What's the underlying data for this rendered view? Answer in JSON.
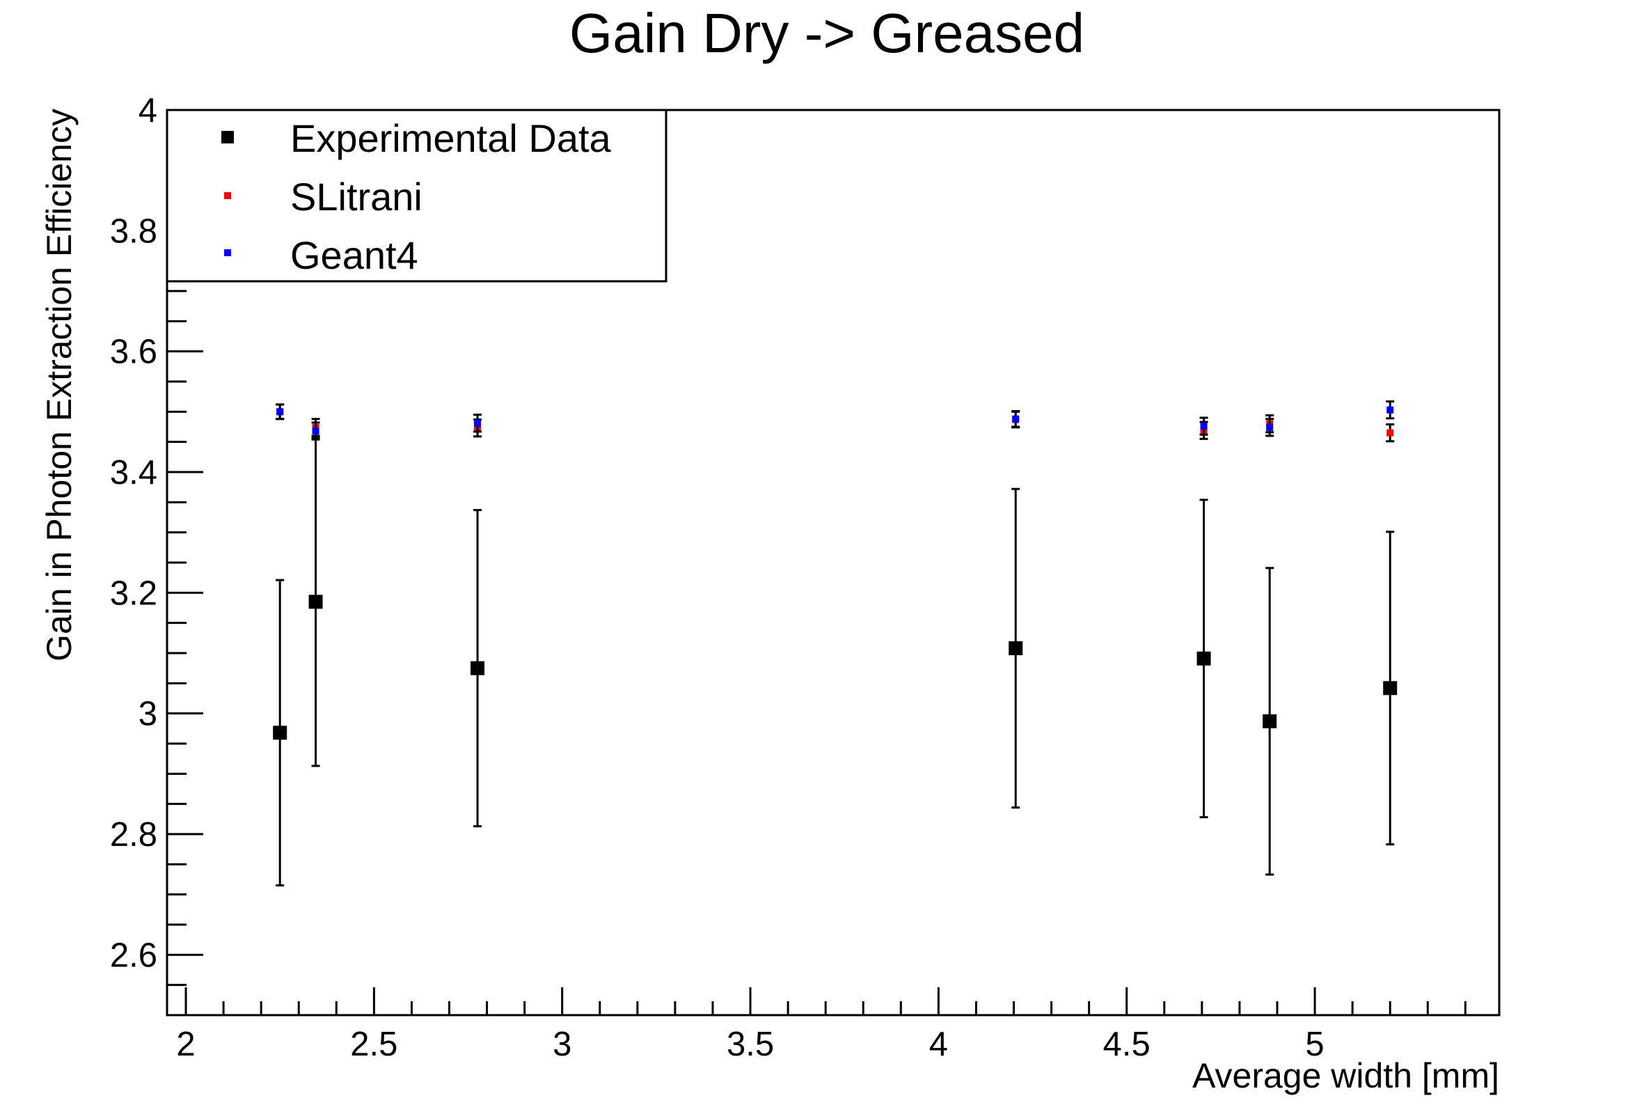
{
  "chart_data": {
    "type": "scatter",
    "title": "Gain Dry -> Greased",
    "xlabel": "Average width [mm]",
    "ylabel": "Gain in Photon Extraction Efficiency",
    "xlim": [
      1.95,
      5.49
    ],
    "ylim": [
      2.5,
      4.0
    ],
    "x_ticks": [
      "2",
      "2.5",
      "3",
      "3.5",
      "4",
      "4.5",
      "5"
    ],
    "y_ticks": [
      "2.6",
      "2.8",
      "3",
      "3.2",
      "3.4",
      "3.6",
      "3.8",
      "4"
    ],
    "grid": false,
    "legend_position": "top-left",
    "series": [
      {
        "name": "Experimental Data",
        "color": "#000000",
        "marker": "square-large",
        "points": [
          {
            "x": 2.25,
            "y": 2.968,
            "err": 0.253
          },
          {
            "x": 2.345,
            "y": 3.185,
            "err": 0.272
          },
          {
            "x": 2.775,
            "y": 3.075,
            "err": 0.262
          },
          {
            "x": 4.205,
            "y": 3.108,
            "err": 0.264
          },
          {
            "x": 4.705,
            "y": 3.091,
            "err": 0.263
          },
          {
            "x": 4.88,
            "y": 2.987,
            "err": 0.254
          },
          {
            "x": 5.2,
            "y": 3.042,
            "err": 0.259
          }
        ]
      },
      {
        "name": "SLitrani",
        "color": "#ff0000",
        "marker": "square-small",
        "points": [
          {
            "x": 2.25,
            "y": 3.5,
            "err": 0.012
          },
          {
            "x": 2.345,
            "y": 3.474,
            "err": 0.014
          },
          {
            "x": 2.775,
            "y": 3.473,
            "err": 0.014
          },
          {
            "x": 4.205,
            "y": 3.487,
            "err": 0.013
          },
          {
            "x": 4.705,
            "y": 3.469,
            "err": 0.014
          },
          {
            "x": 4.88,
            "y": 3.48,
            "err": 0.014
          },
          {
            "x": 5.2,
            "y": 3.465,
            "err": 0.014
          }
        ]
      },
      {
        "name": "Geant4",
        "color": "#0000ff",
        "marker": "square-small",
        "points": [
          {
            "x": 2.25,
            "y": 3.5,
            "err": 0.012
          },
          {
            "x": 2.345,
            "y": 3.468,
            "err": 0.014
          },
          {
            "x": 2.775,
            "y": 3.481,
            "err": 0.014
          },
          {
            "x": 4.205,
            "y": 3.488,
            "err": 0.013
          },
          {
            "x": 4.705,
            "y": 3.476,
            "err": 0.014
          },
          {
            "x": 4.88,
            "y": 3.474,
            "err": 0.014
          },
          {
            "x": 5.2,
            "y": 3.503,
            "err": 0.014
          }
        ]
      }
    ]
  }
}
